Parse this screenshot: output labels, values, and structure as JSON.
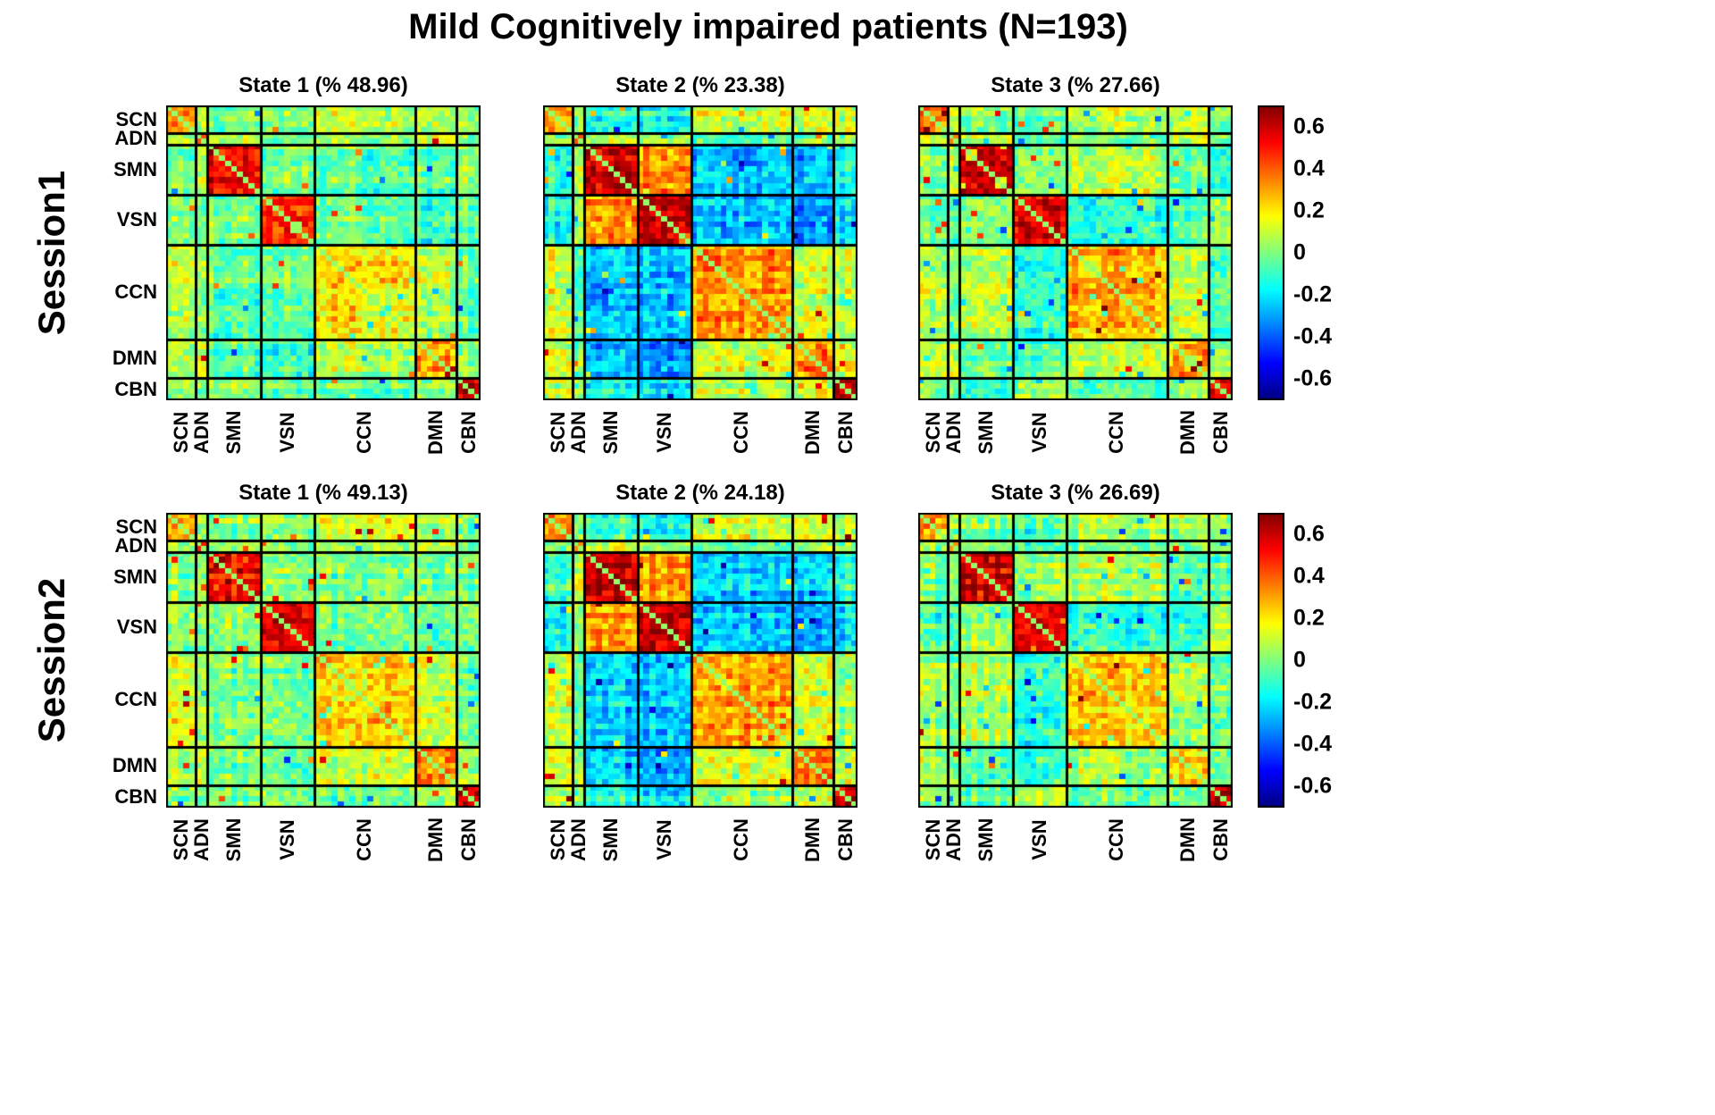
{
  "chart_data": {
    "type": "heatmap",
    "title": "Mild Cognitively impaired patients (N=193)",
    "colormap": "jet",
    "value_range": [
      -0.7,
      0.7
    ],
    "colorbar_ticks": [
      0.6,
      0.4,
      0.2,
      0,
      -0.2,
      -0.4,
      -0.6
    ],
    "axis_networks": [
      "SCN",
      "ADN",
      "SMN",
      "VSN",
      "CCN",
      "DMN",
      "CBN"
    ],
    "network_sizes": [
      5,
      2,
      9,
      9,
      17,
      7,
      4
    ],
    "n_nodes": 53,
    "matrix_kind": "functional connectivity correlation, symmetric, diagonal ~0",
    "rows": [
      {
        "label": "Session1",
        "panels": [
          {
            "state": "State 1",
            "occupancy_pct": 48.96,
            "title": "State 1 (% 48.96)",
            "seed": 101,
            "block_means": [
              [
                0.32,
                0.05,
                0.0,
                0.02,
                0.1,
                0.06,
                0.05
              ],
              [
                0.05,
                0.35,
                0.06,
                -0.04,
                0.02,
                0.1,
                0.0
              ],
              [
                0.0,
                0.06,
                0.55,
                0.02,
                -0.04,
                -0.05,
                0.02
              ],
              [
                0.02,
                -0.04,
                0.02,
                0.52,
                0.0,
                -0.08,
                0.0
              ],
              [
                0.1,
                0.02,
                -0.04,
                0.0,
                0.22,
                0.08,
                -0.02
              ],
              [
                0.06,
                0.1,
                -0.05,
                -0.08,
                0.08,
                0.3,
                0.02
              ],
              [
                0.05,
                0.0,
                0.02,
                0.0,
                -0.02,
                0.02,
                0.62
              ]
            ]
          },
          {
            "state": "State 2",
            "occupancy_pct": 23.38,
            "title": "State 2 (% 23.38)",
            "seed": 202,
            "block_means": [
              [
                0.35,
                0.02,
                -0.12,
                -0.15,
                0.1,
                0.12,
                0.1
              ],
              [
                0.02,
                0.4,
                0.12,
                0.06,
                -0.06,
                0.0,
                0.02
              ],
              [
                -0.12,
                0.12,
                0.62,
                0.35,
                -0.26,
                -0.26,
                -0.15
              ],
              [
                -0.15,
                0.06,
                0.35,
                0.62,
                -0.26,
                -0.32,
                -0.22
              ],
              [
                0.1,
                -0.06,
                -0.26,
                -0.26,
                0.3,
                0.1,
                0.06
              ],
              [
                0.12,
                0.0,
                -0.26,
                -0.32,
                0.1,
                0.35,
                0.1
              ],
              [
                0.1,
                0.02,
                -0.15,
                -0.22,
                0.06,
                0.1,
                0.62
              ]
            ]
          },
          {
            "state": "State 3",
            "occupancy_pct": 27.66,
            "title": "State 3 (% 27.66)",
            "seed": 303,
            "block_means": [
              [
                0.32,
                0.06,
                0.0,
                -0.06,
                0.06,
                0.06,
                0.0
              ],
              [
                0.06,
                0.35,
                0.1,
                -0.05,
                0.0,
                0.06,
                0.0
              ],
              [
                0.0,
                0.1,
                0.6,
                0.0,
                0.08,
                -0.06,
                -0.1
              ],
              [
                -0.06,
                -0.05,
                0.0,
                0.55,
                -0.12,
                -0.1,
                0.05
              ],
              [
                0.06,
                0.0,
                0.08,
                -0.12,
                0.28,
                0.06,
                -0.05
              ],
              [
                0.06,
                0.06,
                -0.06,
                -0.1,
                0.06,
                0.26,
                0.0
              ],
              [
                0.0,
                0.0,
                -0.1,
                0.05,
                -0.05,
                0.0,
                0.6
              ]
            ]
          }
        ]
      },
      {
        "label": "Session2",
        "panels": [
          {
            "state": "State 1",
            "occupancy_pct": 49.13,
            "title": "State 1 (% 49.13)",
            "seed": 404,
            "block_means": [
              [
                0.3,
                0.06,
                0.02,
                0.02,
                0.12,
                0.05,
                0.02
              ],
              [
                0.06,
                0.35,
                0.05,
                -0.03,
                0.02,
                0.08,
                0.0
              ],
              [
                0.02,
                0.05,
                0.52,
                0.03,
                0.0,
                -0.04,
                0.02
              ],
              [
                0.02,
                -0.03,
                0.03,
                0.55,
                -0.02,
                -0.06,
                0.0
              ],
              [
                0.12,
                0.02,
                0.0,
                -0.02,
                0.22,
                0.08,
                -0.02
              ],
              [
                0.05,
                0.08,
                -0.04,
                -0.06,
                0.08,
                0.3,
                0.02
              ],
              [
                0.02,
                0.0,
                0.02,
                0.0,
                -0.02,
                0.02,
                0.6
              ]
            ]
          },
          {
            "state": "State 2",
            "occupancy_pct": 24.18,
            "title": "State 2 (% 24.18)",
            "seed": 505,
            "block_means": [
              [
                0.35,
                0.02,
                -0.1,
                -0.14,
                0.1,
                0.1,
                0.08
              ],
              [
                0.02,
                0.4,
                0.1,
                0.05,
                -0.05,
                0.02,
                0.02
              ],
              [
                -0.1,
                0.1,
                0.62,
                0.32,
                -0.24,
                -0.24,
                -0.14
              ],
              [
                -0.14,
                0.05,
                0.32,
                0.62,
                -0.24,
                -0.3,
                -0.2
              ],
              [
                0.1,
                -0.05,
                -0.24,
                -0.24,
                0.3,
                0.12,
                0.05
              ],
              [
                0.1,
                0.02,
                -0.24,
                -0.3,
                0.12,
                0.35,
                0.1
              ],
              [
                0.08,
                0.02,
                -0.14,
                -0.2,
                0.05,
                0.1,
                0.62
              ]
            ]
          },
          {
            "state": "State 3",
            "occupancy_pct": 26.69,
            "title": "State 3 (% 26.69)",
            "seed": 606,
            "block_means": [
              [
                0.3,
                0.05,
                0.0,
                -0.08,
                0.05,
                0.05,
                0.0
              ],
              [
                0.05,
                0.35,
                0.08,
                -0.05,
                0.02,
                0.05,
                0.0
              ],
              [
                0.0,
                0.08,
                0.58,
                0.02,
                0.06,
                -0.06,
                -0.08
              ],
              [
                -0.08,
                -0.05,
                0.02,
                0.55,
                -0.12,
                -0.1,
                0.04
              ],
              [
                0.05,
                0.02,
                0.06,
                -0.12,
                0.26,
                0.06,
                -0.05
              ],
              [
                0.05,
                0.05,
                -0.06,
                -0.1,
                0.06,
                0.26,
                0.0
              ],
              [
                0.0,
                0.0,
                -0.08,
                0.04,
                -0.05,
                0.0,
                0.6
              ]
            ]
          }
        ]
      }
    ]
  }
}
